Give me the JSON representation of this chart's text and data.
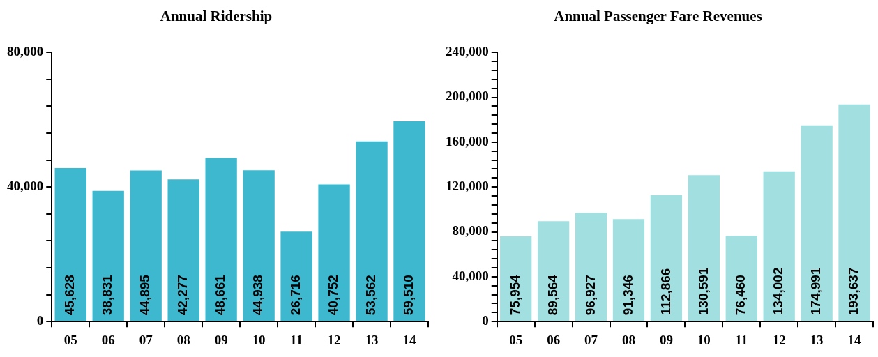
{
  "chart_data": [
    {
      "type": "bar",
      "title": "Annual Ridership",
      "categories": [
        "05",
        "06",
        "07",
        "08",
        "09",
        "10",
        "11",
        "12",
        "13",
        "14"
      ],
      "values": [
        45628,
        38831,
        44895,
        42277,
        48661,
        44938,
        26716,
        40752,
        53562,
        59510
      ],
      "value_labels": [
        "45,628",
        "38,831",
        "44,895",
        "42,277",
        "48,661",
        "44,938",
        "26,716",
        "40,752",
        "53,562",
        "59,510"
      ],
      "color": "#3db8cf",
      "grid": false,
      "legend": false,
      "ylim": [
        0,
        80000
      ],
      "yticks": [
        0,
        {
          "value": 8000,
          "label": null
        },
        {
          "value": 16000,
          "label": null
        },
        {
          "value": 24000,
          "label": null
        },
        {
          "value": 32000,
          "label": null
        },
        {
          "value": 40000,
          "label": "40,000"
        },
        {
          "value": 48000,
          "label": null
        },
        {
          "value": 56000,
          "label": null
        },
        {
          "value": 64000,
          "label": null
        },
        {
          "value": 72000,
          "label": null
        },
        {
          "value": 80000,
          "label": "80,000"
        }
      ]
    },
    {
      "type": "bar",
      "title": "Annual Passenger Fare Revenues",
      "categories": [
        "05",
        "06",
        "07",
        "08",
        "09",
        "10",
        "11",
        "12",
        "13",
        "14"
      ],
      "values": [
        75954,
        89564,
        96927,
        91346,
        112866,
        130591,
        76460,
        134002,
        174991,
        193637
      ],
      "value_labels": [
        "75,954",
        "89,564",
        "96,927",
        "91,346",
        "112,866",
        "130,591",
        "76,460",
        "134,002",
        "174,991",
        "193,637"
      ],
      "color": "#a1dfe0",
      "grid": false,
      "legend": false,
      "ylim": [
        0,
        240000
      ],
      "yticks": [
        0,
        {
          "value": 8000,
          "label": null
        },
        {
          "value": 16000,
          "label": null
        },
        {
          "value": 24000,
          "label": null
        },
        {
          "value": 32000,
          "label": null
        },
        {
          "value": 40000,
          "label": "40,000"
        },
        {
          "value": 48000,
          "label": null
        },
        {
          "value": 56000,
          "label": null
        },
        {
          "value": 64000,
          "label": null
        },
        {
          "value": 72000,
          "label": null
        },
        {
          "value": 80000,
          "label": "80,000"
        },
        {
          "value": 88000,
          "label": null
        },
        {
          "value": 96000,
          "label": null
        },
        {
          "value": 104000,
          "label": null
        },
        {
          "value": 112000,
          "label": null
        },
        {
          "value": 120000,
          "label": "120,000"
        },
        {
          "value": 128000,
          "label": null
        },
        {
          "value": 136000,
          "label": null
        },
        {
          "value": 144000,
          "label": null
        },
        {
          "value": 152000,
          "label": null
        },
        {
          "value": 160000,
          "label": "160,000"
        },
        {
          "value": 168000,
          "label": null
        },
        {
          "value": 176000,
          "label": null
        },
        {
          "value": 184000,
          "label": null
        },
        {
          "value": 192000,
          "label": null
        },
        {
          "value": 200000,
          "label": "200,000"
        },
        {
          "value": 208000,
          "label": null
        },
        {
          "value": 216000,
          "label": null
        },
        {
          "value": 224000,
          "label": null
        },
        {
          "value": 232000,
          "label": null
        },
        {
          "value": 240000,
          "label": "240,000"
        }
      ]
    }
  ]
}
